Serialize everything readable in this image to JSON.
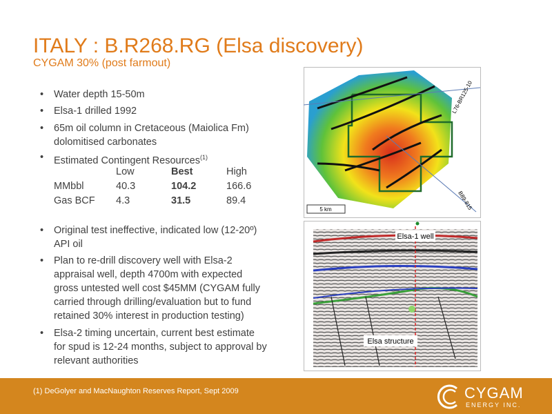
{
  "header": {
    "title": "ITALY : B.R268.RG (Elsa discovery)",
    "subtitle": "CYGAM 30% (post farmout)"
  },
  "bullets_top": [
    "Water depth 15-50m",
    "Elsa-1 drilled 1992",
    "65m oil column in Cretaceous (Maiolica Fm) dolomitised carbonates"
  ],
  "resources": {
    "label": "Estimated Contingent Resources",
    "footnote_ref": "(1)",
    "table": {
      "columns": [
        "Low",
        "Best",
        "High"
      ],
      "rows": [
        {
          "label": "MMbbl",
          "values": [
            "40.3",
            "104.2",
            "166.6"
          ]
        },
        {
          "label": "Gas BCF",
          "values": [
            "4.3",
            "31.5",
            "89.4"
          ]
        }
      ]
    }
  },
  "bullets_bottom": [
    "Original test ineffective, indicated low (12-20º) API oil",
    "Plan to re-drill discovery well with Elsa-2 appraisal well, depth 4700m with expected gross untested well cost $45MM (CYGAM fully carried through drilling/evaluation but to fund retained 30% interest in production testing)",
    "Elsa-2 timing uncertain, current best estimate for spud is 12-24 months, subject to approval by relevant authorities"
  ],
  "figures": {
    "map": {
      "line_labels": [
        "L76-BR125-10",
        "B89-815"
      ],
      "scale": "5 km"
    },
    "seismic": {
      "well_label": "Elsa-1 well",
      "structure_label": "Elsa structure"
    }
  },
  "footer": {
    "note": "(1)  DeGolyer and MacNaughton Reserves Report, Sept 2009",
    "logo": {
      "name": "CYGAM",
      "tagline": "ENERGY INC."
    }
  }
}
